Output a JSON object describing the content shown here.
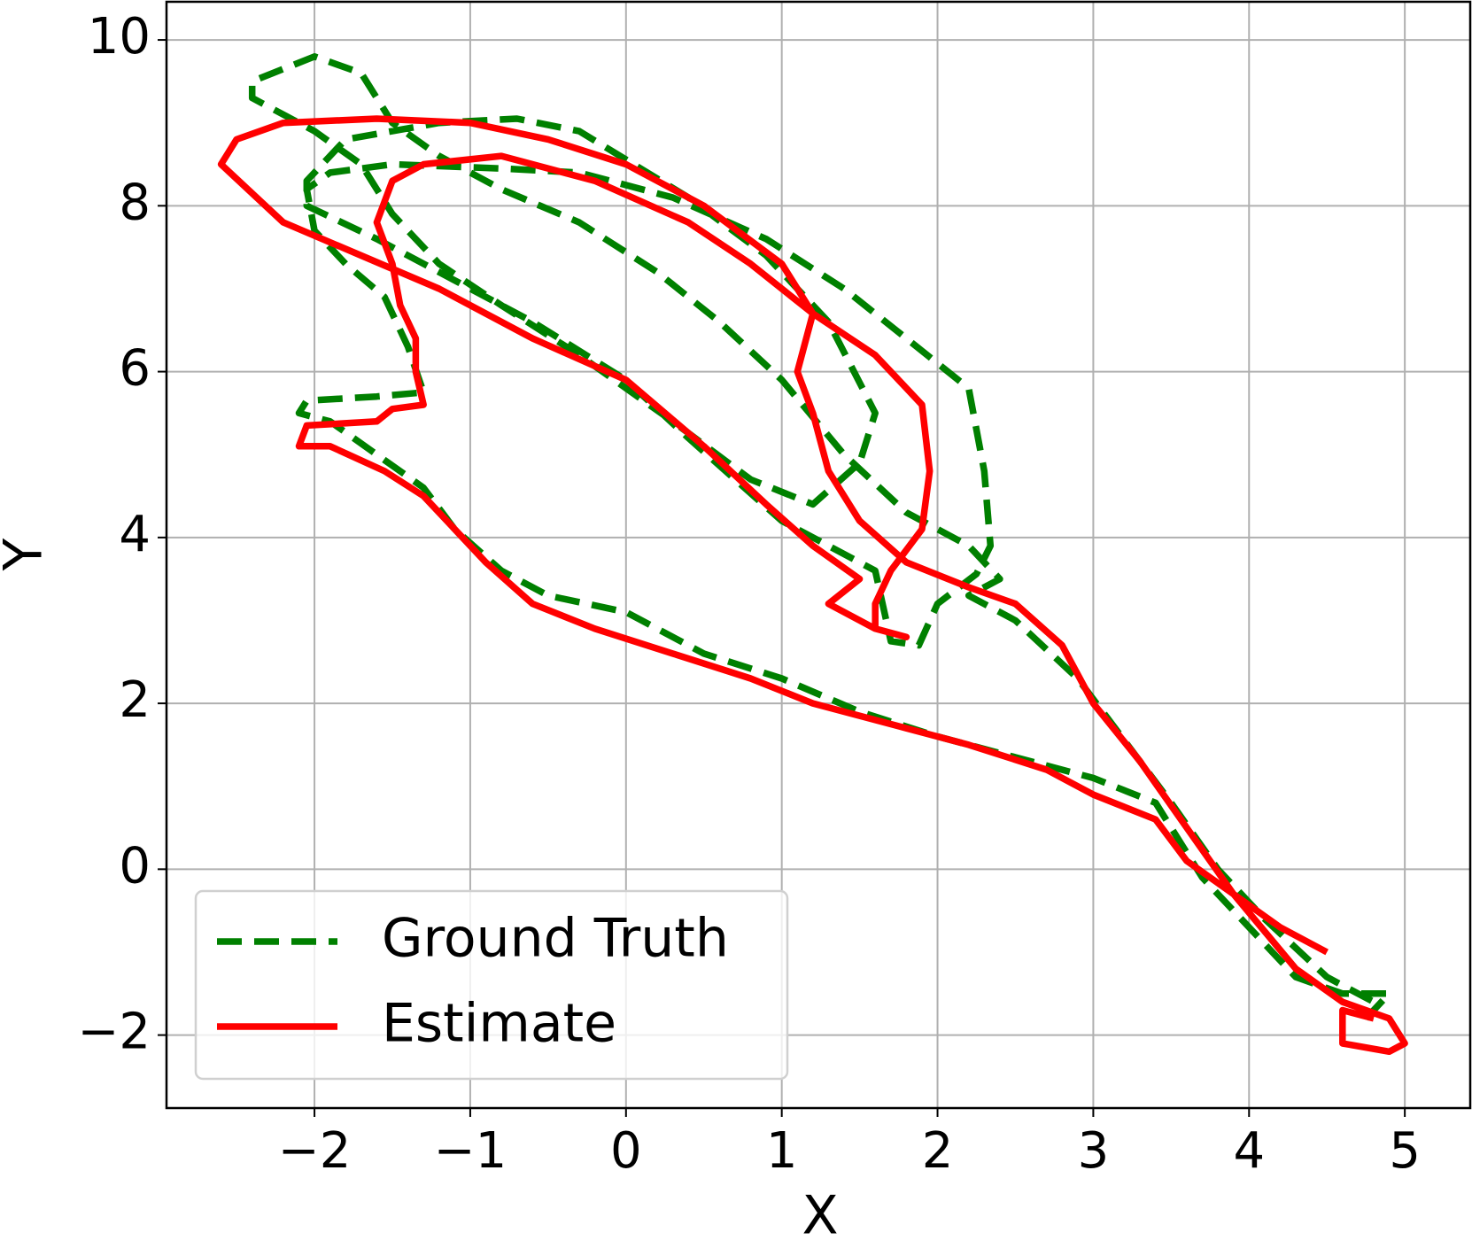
{
  "chart_data": {
    "type": "line",
    "xlabel": "X",
    "ylabel": "Y",
    "grid": true,
    "legend": "lower left",
    "xlim": [
      -2.95,
      5.42
    ],
    "ylim": [
      -2.88,
      10.46
    ],
    "xticks": [
      {
        "value": -2,
        "label": "−2"
      },
      {
        "value": -1,
        "label": "−1"
      },
      0,
      1,
      2,
      3,
      4,
      5
    ],
    "yticks": [
      {
        "value": -2,
        "label": "−2"
      },
      0,
      2,
      4,
      6,
      8,
      10
    ],
    "series": [
      {
        "name": "Ground Truth",
        "color": "#008000",
        "dash": true,
        "x": [
          4.75,
          4.9,
          4.6,
          4.3,
          4.0,
          3.7,
          3.5,
          3.4,
          3.0,
          2.5,
          2.0,
          1.5,
          1.0,
          0.5,
          0.0,
          -0.5,
          -0.8,
          -1.1,
          -1.3,
          -1.6,
          -1.9,
          -2.1,
          -2.05,
          -1.6,
          -1.3,
          -1.4,
          -1.55,
          -1.8,
          -2.0,
          -2.05,
          -1.9,
          -1.5,
          -0.8,
          -0.3,
          0.3,
          0.9,
          1.4,
          1.8,
          2.2,
          2.3,
          2.34,
          2.25,
          2.0,
          1.88,
          1.7,
          1.6,
          1.0,
          0.4,
          0.0,
          -0.6,
          -1.2,
          -1.6,
          -2.05,
          -2.05,
          -1.8,
          -1.2,
          -0.7,
          -0.3,
          0.4,
          0.9,
          1.3,
          1.6,
          1.5,
          1.2,
          0.8,
          0.3,
          -0.3,
          -0.8,
          -1.2,
          -1.5,
          -1.7,
          -2.0,
          -2.4,
          -2.4,
          -2.0,
          -1.7,
          -1.5,
          -1.2,
          -0.8,
          -0.3,
          0.2,
          0.6,
          1.0,
          1.4,
          1.8,
          2.2,
          2.4,
          2.2,
          2.5,
          2.9,
          3.1,
          3.5,
          3.8,
          4.1,
          4.5,
          4.8
        ],
        "values": [
          -1.8,
          -1.5,
          -1.5,
          -1.3,
          -0.7,
          -0.1,
          0.5,
          0.8,
          1.1,
          1.35,
          1.6,
          1.9,
          2.3,
          2.6,
          3.1,
          3.3,
          3.6,
          4.1,
          4.6,
          5.0,
          5.4,
          5.5,
          5.65,
          5.7,
          5.75,
          6.3,
          6.9,
          7.3,
          7.7,
          8.2,
          8.4,
          8.5,
          8.45,
          8.4,
          8.1,
          7.6,
          7.0,
          6.4,
          5.8,
          4.8,
          3.9,
          3.56,
          3.2,
          2.7,
          2.75,
          3.6,
          4.2,
          5.2,
          5.9,
          6.6,
          7.2,
          7.6,
          8.0,
          8.3,
          8.8,
          9.0,
          9.05,
          8.9,
          8.1,
          7.4,
          6.6,
          5.5,
          4.9,
          4.4,
          4.7,
          5.4,
          6.2,
          6.8,
          7.3,
          7.9,
          8.5,
          8.9,
          9.3,
          9.5,
          9.8,
          9.6,
          9.0,
          8.6,
          8.2,
          7.8,
          7.2,
          6.6,
          5.9,
          5.0,
          4.3,
          3.9,
          3.5,
          3.3,
          3.0,
          2.3,
          1.8,
          0.8,
          0.0,
          -0.6,
          -1.3,
          -1.6
        ]
      },
      {
        "name": "Estimate",
        "color": "#ff0000",
        "dash": false,
        "x": [
          4.5,
          4.2,
          3.9,
          3.6,
          3.4,
          3.0,
          2.7,
          2.2,
          1.8,
          1.2,
          0.8,
          0.3,
          -0.2,
          -0.6,
          -0.9,
          -1.1,
          -1.3,
          -1.55,
          -1.9,
          -2.1,
          -2.05,
          -1.6,
          -1.5,
          -1.3,
          -1.35,
          -1.35,
          -1.45,
          -1.5,
          -1.6,
          -1.5,
          -1.3,
          -0.8,
          -0.2,
          0.4,
          0.8,
          1.2,
          1.6,
          1.9,
          1.95,
          1.9,
          1.7,
          1.6,
          1.6,
          1.8,
          1.6,
          1.4,
          1.3,
          1.5,
          1.2,
          0.9,
          0.5,
          0.0,
          -0.6,
          -1.2,
          -1.7,
          -2.2,
          -2.6,
          -2.5,
          -2.2,
          -1.6,
          -1.0,
          -0.5,
          0.0,
          0.5,
          1.0,
          1.2,
          1.1,
          1.2,
          1.3,
          1.5,
          1.8,
          2.2,
          2.5,
          2.8,
          3.0,
          3.3,
          3.6,
          3.9,
          4.3,
          4.6,
          4.9,
          5.0,
          4.9,
          4.6,
          4.6,
          4.8
        ],
        "values": [
          -1.0,
          -0.7,
          -0.3,
          0.1,
          0.6,
          0.9,
          1.2,
          1.5,
          1.7,
          2.0,
          2.3,
          2.6,
          2.9,
          3.2,
          3.7,
          4.1,
          4.5,
          4.8,
          5.1,
          5.1,
          5.35,
          5.4,
          5.55,
          5.6,
          6.0,
          6.4,
          6.8,
          7.3,
          7.8,
          8.3,
          8.5,
          8.6,
          8.3,
          7.8,
          7.3,
          6.7,
          6.2,
          5.6,
          4.8,
          4.1,
          3.6,
          3.2,
          2.9,
          2.8,
          2.9,
          3.1,
          3.2,
          3.5,
          3.9,
          4.4,
          5.1,
          5.9,
          6.4,
          7.0,
          7.4,
          7.8,
          8.5,
          8.8,
          9.0,
          9.05,
          9.0,
          8.8,
          8.5,
          8.0,
          7.3,
          6.7,
          6.0,
          5.5,
          4.8,
          4.2,
          3.7,
          3.4,
          3.2,
          2.7,
          2.0,
          1.3,
          0.5,
          -0.3,
          -1.2,
          -1.6,
          -1.8,
          -2.1,
          -2.2,
          -2.1,
          -1.7,
          -1.8
        ]
      }
    ]
  }
}
